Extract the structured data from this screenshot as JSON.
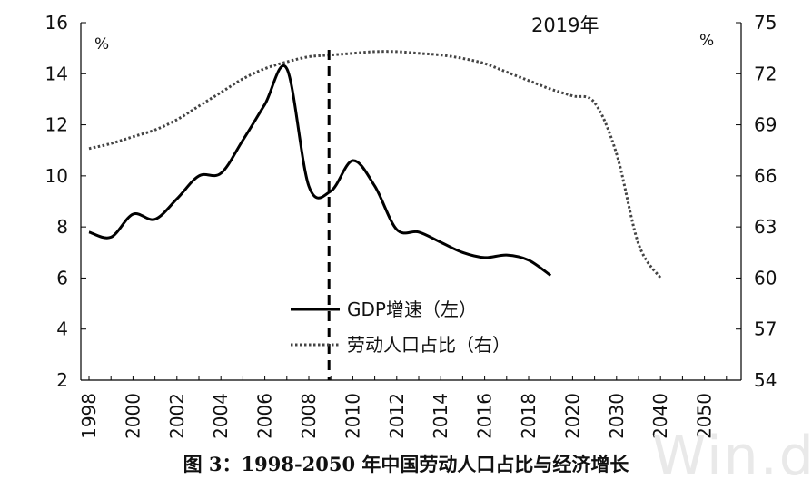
{
  "chart_data": {
    "type": "line",
    "caption": "图 3：1998-2050 年中国劳动人口占比与经济增长",
    "watermark": "Win.d",
    "x_tick_labels": [
      "1998",
      "2000",
      "2002",
      "2004",
      "2006",
      "2008",
      "2010",
      "2012",
      "2014",
      "2016",
      "2018",
      "2020",
      "2030",
      "2040",
      "2050"
    ],
    "y_left": {
      "unit": "%",
      "ticks": [
        "2",
        "4",
        "6",
        "8",
        "10",
        "12",
        "14",
        "16"
      ],
      "ylim": [
        2,
        16
      ]
    },
    "y_right": {
      "unit": "%",
      "ticks": [
        "54",
        "57",
        "60",
        "63",
        "66",
        "69",
        "72",
        "75"
      ],
      "ylim": [
        54,
        75
      ]
    },
    "marker": {
      "label": "2019年",
      "x_index": 11
    },
    "legend": [
      {
        "name": "GDP增速（左）",
        "style": "solid"
      },
      {
        "name": "劳动人口占比（右）",
        "style": "dotted"
      }
    ],
    "series": [
      {
        "name": "GDP增速（左）",
        "axis": "left",
        "style": "solid",
        "x_index": [
          0,
          1,
          2,
          3,
          4,
          5,
          6,
          7,
          8,
          9,
          10,
          11,
          12,
          13,
          14,
          15,
          16,
          17,
          18,
          19,
          20,
          21
        ],
        "values": [
          7.8,
          7.6,
          8.5,
          8.3,
          9.1,
          10.0,
          10.1,
          11.4,
          12.8,
          14.2,
          9.6,
          9.4,
          10.6,
          9.6,
          7.9,
          7.8,
          7.4,
          7.0,
          6.8,
          6.9,
          6.7,
          6.1
        ]
      },
      {
        "name": "劳动人口占比（右）",
        "axis": "right",
        "style": "dotted",
        "x_index": [
          0,
          1,
          2,
          3,
          4,
          5,
          6,
          7,
          8,
          9,
          10,
          11,
          12,
          13,
          14,
          15,
          16,
          17,
          18,
          19,
          20,
          21,
          22,
          23,
          24,
          25,
          26
        ],
        "values": [
          67.6,
          67.9,
          68.3,
          68.7,
          69.3,
          70.1,
          70.9,
          71.7,
          72.3,
          72.7,
          73.0,
          73.1,
          73.2,
          73.3,
          73.3,
          73.2,
          73.1,
          72.9,
          72.6,
          72.1,
          71.6,
          71.1,
          70.7,
          70.3,
          67.3,
          62.0,
          60.0
        ]
      }
    ]
  }
}
